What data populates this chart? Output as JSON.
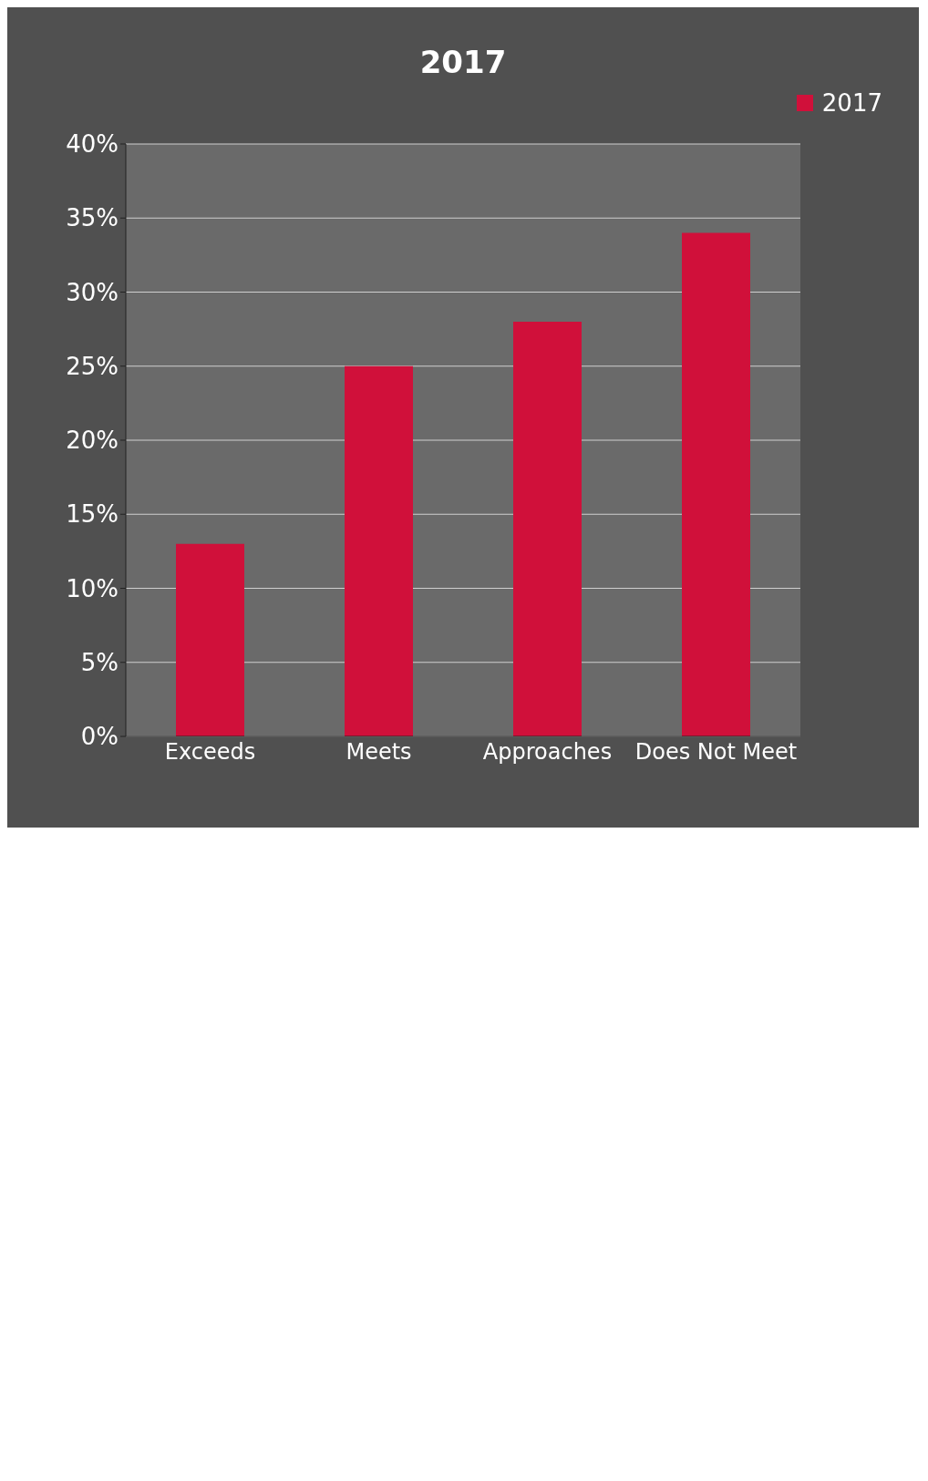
{
  "chart_data": {
    "type": "bar",
    "title": "2017",
    "categories": [
      "Exceeds",
      "Meets",
      "Approaches",
      "Does Not Meet"
    ],
    "series": [
      {
        "name": "2017",
        "color": "#d0103a",
        "values": [
          13,
          25,
          28,
          34
        ]
      }
    ],
    "ylim": [
      0,
      40
    ],
    "yticks": [
      {
        "value": 0,
        "label": "0%"
      },
      {
        "value": 5,
        "label": "5%"
      },
      {
        "value": 10,
        "label": "10%"
      },
      {
        "value": 15,
        "label": "15%"
      },
      {
        "value": 20,
        "label": "20%"
      },
      {
        "value": 25,
        "label": "25%"
      },
      {
        "value": 30,
        "label": "30%"
      },
      {
        "value": 35,
        "label": "35%"
      },
      {
        "value": 40,
        "label": "40%"
      }
    ],
    "grid": "y",
    "legend": "top right"
  }
}
